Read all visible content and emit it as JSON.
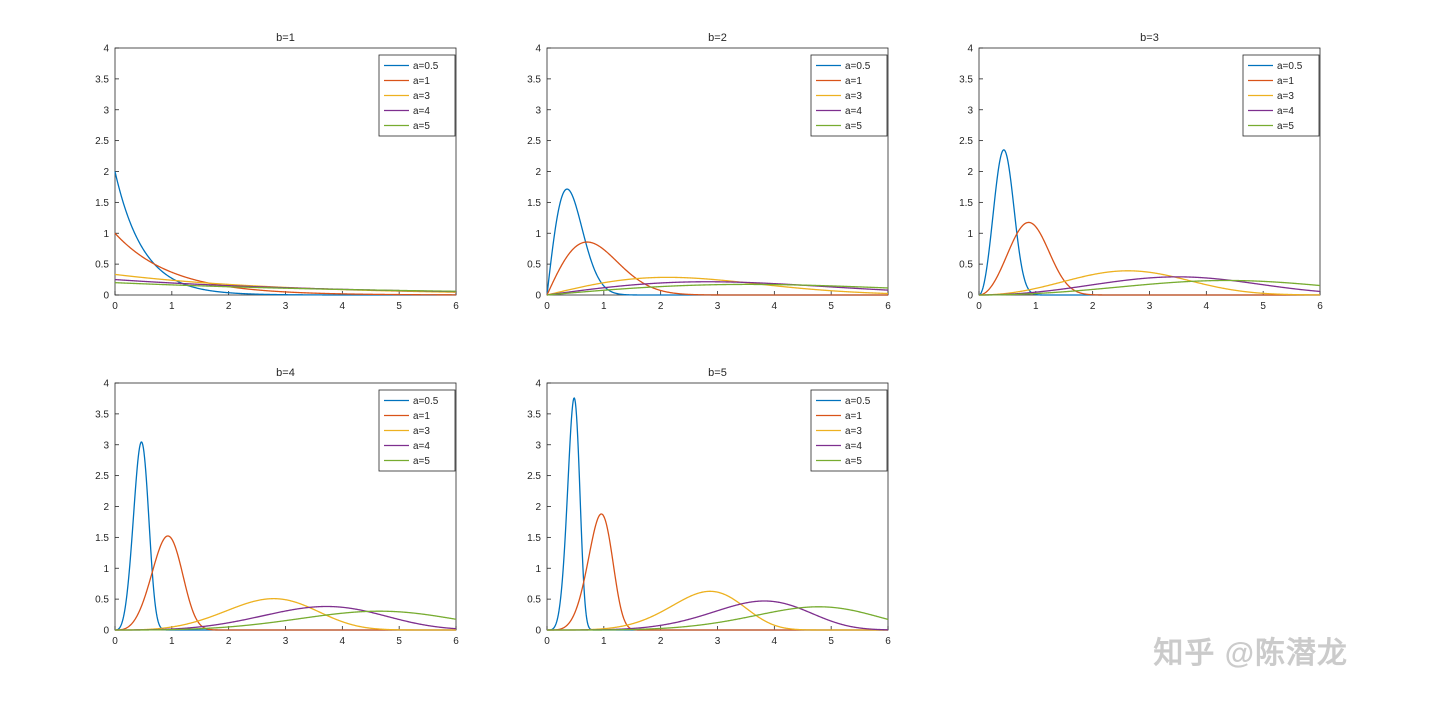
{
  "watermark": "知乎 @陈潜龙",
  "figure": {
    "background": "#ffffff",
    "axis_color": "#262626",
    "tick_label_color": "#262626",
    "grid": false
  },
  "palette": {
    "blue": "#0072BD",
    "orange": "#D95319",
    "yellow": "#EDB120",
    "purple": "#7E2F8E",
    "green": "#77AC30"
  },
  "chart_data": [
    {
      "type": "line",
      "title": "b=1",
      "model": "weibull_pdf: y = (b/a)*(x/a)^(b-1)*exp(-(x/a)^b)",
      "xlim": [
        0,
        6
      ],
      "ylim": [
        0,
        4
      ],
      "xticks": [
        0,
        1,
        2,
        3,
        4,
        5,
        6
      ],
      "xticklabels": [
        "0",
        "1",
        "2",
        "3",
        "4",
        "5",
        "6"
      ],
      "yticks": [
        0,
        0.5,
        1,
        1.5,
        2,
        2.5,
        3,
        3.5,
        4
      ],
      "yticklabels": [
        "0",
        "0.5",
        "1",
        "1.5",
        "2",
        "2.5",
        "3",
        "3.5",
        "4"
      ],
      "legend_position": "upper right",
      "series": [
        {
          "name": "a=0.5",
          "a": 0.5,
          "b": 1,
          "color": "#0072BD",
          "peak": {
            "x": 0,
            "y": 2.0
          }
        },
        {
          "name": "a=1",
          "a": 1,
          "b": 1,
          "color": "#D95319",
          "peak": {
            "x": 0,
            "y": 1.0
          }
        },
        {
          "name": "a=3",
          "a": 3,
          "b": 1,
          "color": "#EDB120",
          "peak": {
            "x": 0,
            "y": 0.333
          }
        },
        {
          "name": "a=4",
          "a": 4,
          "b": 1,
          "color": "#7E2F8E",
          "peak": {
            "x": 0,
            "y": 0.25
          }
        },
        {
          "name": "a=5",
          "a": 5,
          "b": 1,
          "color": "#77AC30",
          "peak": {
            "x": 0,
            "y": 0.2
          }
        }
      ]
    },
    {
      "type": "line",
      "title": "b=2",
      "model": "weibull_pdf: y = (b/a)*(x/a)^(b-1)*exp(-(x/a)^b)",
      "xlim": [
        0,
        6
      ],
      "ylim": [
        0,
        4
      ],
      "xticks": [
        0,
        1,
        2,
        3,
        4,
        5,
        6
      ],
      "xticklabels": [
        "0",
        "1",
        "2",
        "3",
        "4",
        "5",
        "6"
      ],
      "yticks": [
        0,
        0.5,
        1,
        1.5,
        2,
        2.5,
        3,
        3.5,
        4
      ],
      "yticklabels": [
        "0",
        "0.5",
        "1",
        "1.5",
        "2",
        "2.5",
        "3",
        "3.5",
        "4"
      ],
      "legend_position": "upper right",
      "series": [
        {
          "name": "a=0.5",
          "a": 0.5,
          "b": 2,
          "color": "#0072BD",
          "peak": {
            "x": 0.35,
            "y": 1.72
          }
        },
        {
          "name": "a=1",
          "a": 1,
          "b": 2,
          "color": "#D95319",
          "peak": {
            "x": 0.71,
            "y": 0.86
          }
        },
        {
          "name": "a=3",
          "a": 3,
          "b": 2,
          "color": "#EDB120",
          "peak": {
            "x": 2.12,
            "y": 0.29
          }
        },
        {
          "name": "a=4",
          "a": 4,
          "b": 2,
          "color": "#7E2F8E",
          "peak": {
            "x": 2.83,
            "y": 0.21
          }
        },
        {
          "name": "a=5",
          "a": 5,
          "b": 2,
          "color": "#77AC30",
          "peak": {
            "x": 3.54,
            "y": 0.17
          }
        }
      ]
    },
    {
      "type": "line",
      "title": "b=3",
      "model": "weibull_pdf: y = (b/a)*(x/a)^(b-1)*exp(-(x/a)^b)",
      "xlim": [
        0,
        6
      ],
      "ylim": [
        0,
        4
      ],
      "xticks": [
        0,
        1,
        2,
        3,
        4,
        5,
        6
      ],
      "xticklabels": [
        "0",
        "1",
        "2",
        "3",
        "4",
        "5",
        "6"
      ],
      "yticks": [
        0,
        0.5,
        1,
        1.5,
        2,
        2.5,
        3,
        3.5,
        4
      ],
      "yticklabels": [
        "0",
        "0.5",
        "1",
        "1.5",
        "2",
        "2.5",
        "3",
        "3.5",
        "4"
      ],
      "legend_position": "upper right",
      "series": [
        {
          "name": "a=0.5",
          "a": 0.5,
          "b": 3,
          "color": "#0072BD",
          "peak": {
            "x": 0.44,
            "y": 2.35
          }
        },
        {
          "name": "a=1",
          "a": 1,
          "b": 3,
          "color": "#D95319",
          "peak": {
            "x": 0.87,
            "y": 1.18
          }
        },
        {
          "name": "a=3",
          "a": 3,
          "b": 3,
          "color": "#EDB120",
          "peak": {
            "x": 2.62,
            "y": 0.39
          }
        },
        {
          "name": "a=4",
          "a": 4,
          "b": 3,
          "color": "#7E2F8E",
          "peak": {
            "x": 3.49,
            "y": 0.29
          }
        },
        {
          "name": "a=5",
          "a": 5,
          "b": 3,
          "color": "#77AC30",
          "peak": {
            "x": 4.37,
            "y": 0.24
          }
        }
      ]
    },
    {
      "type": "line",
      "title": "b=4",
      "model": "weibull_pdf: y = (b/a)*(x/a)^(b-1)*exp(-(x/a)^b)",
      "xlim": [
        0,
        6
      ],
      "ylim": [
        0,
        4
      ],
      "xticks": [
        0,
        1,
        2,
        3,
        4,
        5,
        6
      ],
      "xticklabels": [
        "0",
        "1",
        "2",
        "3",
        "4",
        "5",
        "6"
      ],
      "yticks": [
        0,
        0.5,
        1,
        1.5,
        2,
        2.5,
        3,
        3.5,
        4
      ],
      "yticklabels": [
        "0",
        "0.5",
        "1",
        "1.5",
        "2",
        "2.5",
        "3",
        "3.5",
        "4"
      ],
      "legend_position": "upper right",
      "series": [
        {
          "name": "a=0.5",
          "a": 0.5,
          "b": 4,
          "color": "#0072BD",
          "peak": {
            "x": 0.47,
            "y": 3.05
          }
        },
        {
          "name": "a=1",
          "a": 1,
          "b": 4,
          "color": "#D95319",
          "peak": {
            "x": 0.93,
            "y": 1.52
          }
        },
        {
          "name": "a=3",
          "a": 3,
          "b": 4,
          "color": "#EDB120",
          "peak": {
            "x": 2.79,
            "y": 0.51
          }
        },
        {
          "name": "a=4",
          "a": 4,
          "b": 4,
          "color": "#7E2F8E",
          "peak": {
            "x": 3.72,
            "y": 0.38
          }
        },
        {
          "name": "a=5",
          "a": 5,
          "b": 4,
          "color": "#77AC30",
          "peak": {
            "x": 4.65,
            "y": 0.3
          }
        }
      ]
    },
    {
      "type": "line",
      "title": "b=5",
      "model": "weibull_pdf: y = (b/a)*(x/a)^(b-1)*exp(-(x/a)^b)",
      "xlim": [
        0,
        6
      ],
      "ylim": [
        0,
        4
      ],
      "xticks": [
        0,
        1,
        2,
        3,
        4,
        5,
        6
      ],
      "xticklabels": [
        "0",
        "1",
        "2",
        "3",
        "4",
        "5",
        "6"
      ],
      "yticks": [
        0,
        0.5,
        1,
        1.5,
        2,
        2.5,
        3,
        3.5,
        4
      ],
      "yticklabels": [
        "0",
        "0.5",
        "1",
        "1.5",
        "2",
        "2.5",
        "3",
        "3.5",
        "4"
      ],
      "legend_position": "upper right",
      "series": [
        {
          "name": "a=0.5",
          "a": 0.5,
          "b": 5,
          "color": "#0072BD",
          "peak": {
            "x": 0.48,
            "y": 3.76
          }
        },
        {
          "name": "a=1",
          "a": 1,
          "b": 5,
          "color": "#D95319",
          "peak": {
            "x": 0.96,
            "y": 1.88
          }
        },
        {
          "name": "a=3",
          "a": 3,
          "b": 5,
          "color": "#EDB120",
          "peak": {
            "x": 2.87,
            "y": 0.63
          }
        },
        {
          "name": "a=4",
          "a": 4,
          "b": 5,
          "color": "#7E2F8E",
          "peak": {
            "x": 3.83,
            "y": 0.47
          }
        },
        {
          "name": "a=5",
          "a": 5,
          "b": 5,
          "color": "#77AC30",
          "peak": {
            "x": 4.78,
            "y": 0.38
          }
        }
      ]
    }
  ]
}
